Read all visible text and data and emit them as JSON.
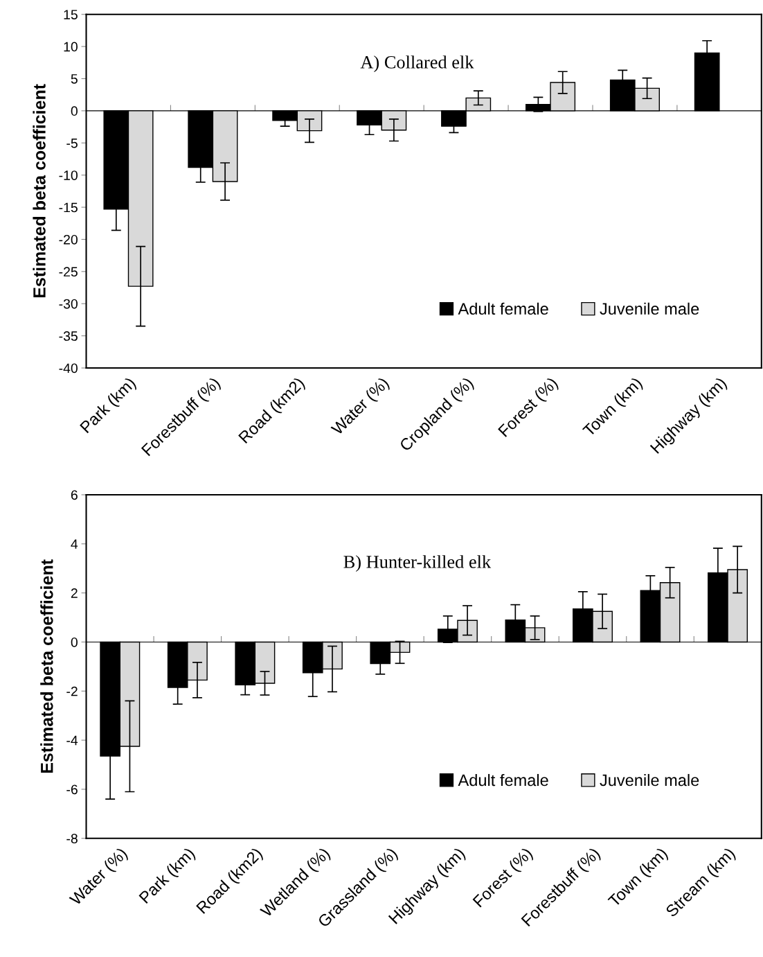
{
  "chart_data": [
    {
      "type": "bar",
      "title": "A) Collared elk",
      "ylabel": "Estimated beta coefficient",
      "categories": [
        "Park (km)",
        "Forestbuff (%)",
        "Road (km2)",
        "Water (%)",
        "Cropland (%)",
        "Forest (%)",
        "Town (km)",
        "Highway (km)"
      ],
      "series": [
        {
          "name": "Adult female",
          "color": "#000000",
          "values": [
            -15.3,
            -8.8,
            -1.5,
            -2.2,
            -2.4,
            1.0,
            4.8,
            9.0
          ],
          "errors": [
            3.3,
            2.3,
            0.9,
            1.5,
            1.0,
            1.1,
            1.5,
            1.9
          ]
        },
        {
          "name": "Juvenile male",
          "color": "#d9d9d9",
          "values": [
            -27.3,
            -11.0,
            -3.1,
            -3.0,
            2.0,
            4.4,
            3.5,
            null
          ],
          "errors": [
            6.2,
            2.9,
            1.8,
            1.7,
            1.1,
            1.7,
            1.6,
            null
          ]
        }
      ],
      "ylim": [
        -40,
        15
      ],
      "yticks": [
        -40,
        -35,
        -30,
        -25,
        -20,
        -15,
        -10,
        -5,
        0,
        5,
        10,
        15
      ],
      "legend": "bottom right"
    },
    {
      "type": "bar",
      "title": "B) Hunter-killed elk",
      "ylabel": "Estimated beta coefficient",
      "categories": [
        "Water (%)",
        "Park (km)",
        "Road (km2)",
        "Wetland (%)",
        "Grassland (%)",
        "Highway (km)",
        "Forest (%)",
        "Forestbuff (%)",
        "Town (km)",
        "Stream (km)"
      ],
      "series": [
        {
          "name": "Adult female",
          "color": "#000000",
          "values": [
            -4.65,
            -1.85,
            -1.75,
            -1.25,
            -0.88,
            0.52,
            0.9,
            1.35,
            2.1,
            2.82
          ],
          "errors": [
            1.75,
            0.68,
            0.4,
            0.97,
            0.43,
            0.54,
            0.62,
            0.7,
            0.6,
            1.0
          ]
        },
        {
          "name": "Juvenile male",
          "color": "#d9d9d9",
          "values": [
            -4.25,
            -1.55,
            -1.68,
            -1.1,
            -0.42,
            0.88,
            0.58,
            1.25,
            2.42,
            2.95
          ],
          "errors": [
            1.85,
            0.72,
            0.48,
            0.93,
            0.45,
            0.6,
            0.48,
            0.7,
            0.62,
            0.95
          ]
        }
      ],
      "ylim": [
        -8,
        6
      ],
      "yticks": [
        -8,
        -6,
        -4,
        -2,
        0,
        2,
        4,
        6
      ],
      "legend": "bottom right"
    }
  ]
}
